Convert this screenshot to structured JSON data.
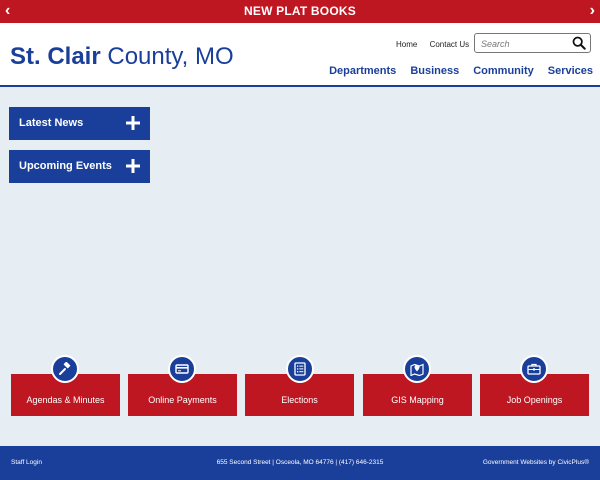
{
  "alert": {
    "text": "NEW PLAT BOOKS",
    "prev_arrow": "‹",
    "next_arrow": "›"
  },
  "header": {
    "logo_bold": "St. Clair",
    "logo_light": " County, MO",
    "util_links": [
      "Home",
      "Contact Us"
    ],
    "search_placeholder": "Search",
    "search_value": "",
    "nav": [
      "Departments",
      "Business",
      "Community",
      "Services"
    ]
  },
  "accordions": [
    {
      "label": "Latest News",
      "icon": "plus-icon"
    },
    {
      "label": "Upcoming Events",
      "icon": "plus-icon"
    }
  ],
  "quick_links": [
    {
      "label": "Agendas & Minutes",
      "icon": "gavel-icon"
    },
    {
      "label": "Online Payments",
      "icon": "credit-card-icon"
    },
    {
      "label": "Elections",
      "icon": "ballot-list-icon"
    },
    {
      "label": "GIS Mapping",
      "icon": "map-pin-icon"
    },
    {
      "label": "Job Openings",
      "icon": "briefcase-icon"
    }
  ],
  "footer": {
    "staff_login": "Staff Login",
    "address": "655 Second Street | Osceola, MO 64776 | (417) 646-2315",
    "credit": "Government Websites by CivicPlus®"
  },
  "colors": {
    "brand_blue": "#1a3f9a",
    "brand_red": "#bf1722",
    "page_bg": "#e6edf3"
  }
}
